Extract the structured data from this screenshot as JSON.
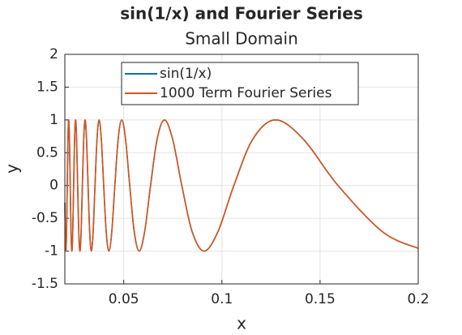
{
  "chart_data": {
    "type": "line",
    "title": "sin(1/x) and Fourier Series",
    "subtitle": "Small Domain",
    "x_label": "x",
    "y_label": "y",
    "x": [
      0.02,
      0.02021,
      0.020536,
      0.020873,
      0.021221,
      0.02158,
      0.021952,
      0.022338,
      0.022736,
      0.02315,
      0.023579,
      0.024023,
      0.024485,
      0.024966,
      0.025465,
      0.025985,
      0.026526,
      0.02709,
      0.027679,
      0.028294,
      0.028937,
      0.02961,
      0.030315,
      0.031055,
      0.031831,
      0.032647,
      0.033506,
      0.034412,
      0.035368,
      0.036378,
      0.037448,
      0.038583,
      0.039789,
      0.041072,
      0.042441,
      0.043905,
      0.045473,
      0.047157,
      0.048971,
      0.05093,
      0.053052,
      0.055358,
      0.057875,
      0.060631,
      0.063662,
      0.067013,
      0.070736,
      0.074897,
      0.079577,
      0.084883,
      0.090946,
      0.097942,
      0.106103,
      0.115749,
      0.127324,
      0.141471,
      0.159155,
      0.181891,
      0.2
    ],
    "series": [
      {
        "name": "sin(1/x)",
        "color": "#0072bd",
        "values": [
          -0.2624,
          -0.7071,
          -1,
          -0.7071,
          0,
          0.7071,
          1,
          0.7071,
          0,
          -0.7071,
          -1,
          -0.7071,
          0,
          0.7071,
          1,
          0.7071,
          0,
          -0.7071,
          -1,
          -0.7071,
          0,
          0.7071,
          1,
          0.7071,
          0,
          -0.7071,
          -1,
          -0.7071,
          0,
          0.7071,
          1,
          0.7071,
          0,
          -0.7071,
          -1,
          -0.7071,
          0,
          0.7071,
          1,
          0.7071,
          0,
          -0.7071,
          -1,
          -0.7071,
          0,
          0.7071,
          1,
          0.7071,
          0,
          -0.7071,
          -1,
          -0.7071,
          0,
          0.7071,
          1,
          0.7071,
          0,
          -0.7071,
          -0.9589
        ]
      },
      {
        "name": "1000 Term Fourier Series",
        "color": "#d95319",
        "values": [
          -0.2624,
          -0.7071,
          -1,
          -0.7071,
          0,
          0.7071,
          1,
          0.7071,
          0,
          -0.7071,
          -1,
          -0.7071,
          0,
          0.7071,
          1,
          0.7071,
          0,
          -0.7071,
          -1,
          -0.7071,
          0,
          0.7071,
          1,
          0.7071,
          0,
          -0.7071,
          -1,
          -0.7071,
          0,
          0.7071,
          1,
          0.7071,
          0,
          -0.7071,
          -1,
          -0.7071,
          0,
          0.7071,
          1,
          0.7071,
          0,
          -0.7071,
          -1,
          -0.7071,
          0,
          0.7071,
          1,
          0.7071,
          0,
          -0.7071,
          -1,
          -0.7071,
          0,
          0.7071,
          1,
          0.7071,
          0,
          -0.7071,
          -0.9589
        ]
      }
    ],
    "xlim": [
      0.02,
      0.2
    ],
    "xticks": [
      0.05,
      0.1,
      0.15,
      0.2
    ],
    "ylim": [
      -1.5,
      2
    ],
    "yticks": [
      -1.5,
      -1,
      -0.5,
      0,
      0.5,
      1,
      1.5,
      2
    ],
    "grid": true,
    "legend": "top"
  }
}
